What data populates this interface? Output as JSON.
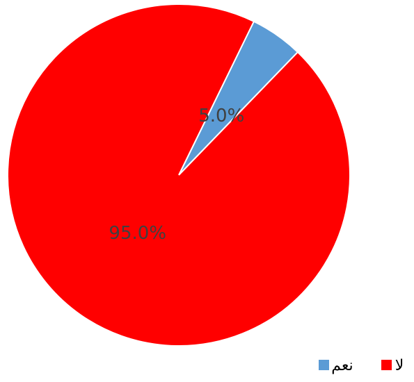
{
  "chart_data": {
    "type": "pie",
    "categories": [
      "نعم",
      "لا"
    ],
    "values": [
      5.0,
      95.0
    ],
    "data_labels": [
      "5.0%",
      "95.0%"
    ],
    "colors": [
      "#5B9BD5",
      "#FF0000"
    ],
    "title": "",
    "legend_placement": "bottom-right"
  }
}
